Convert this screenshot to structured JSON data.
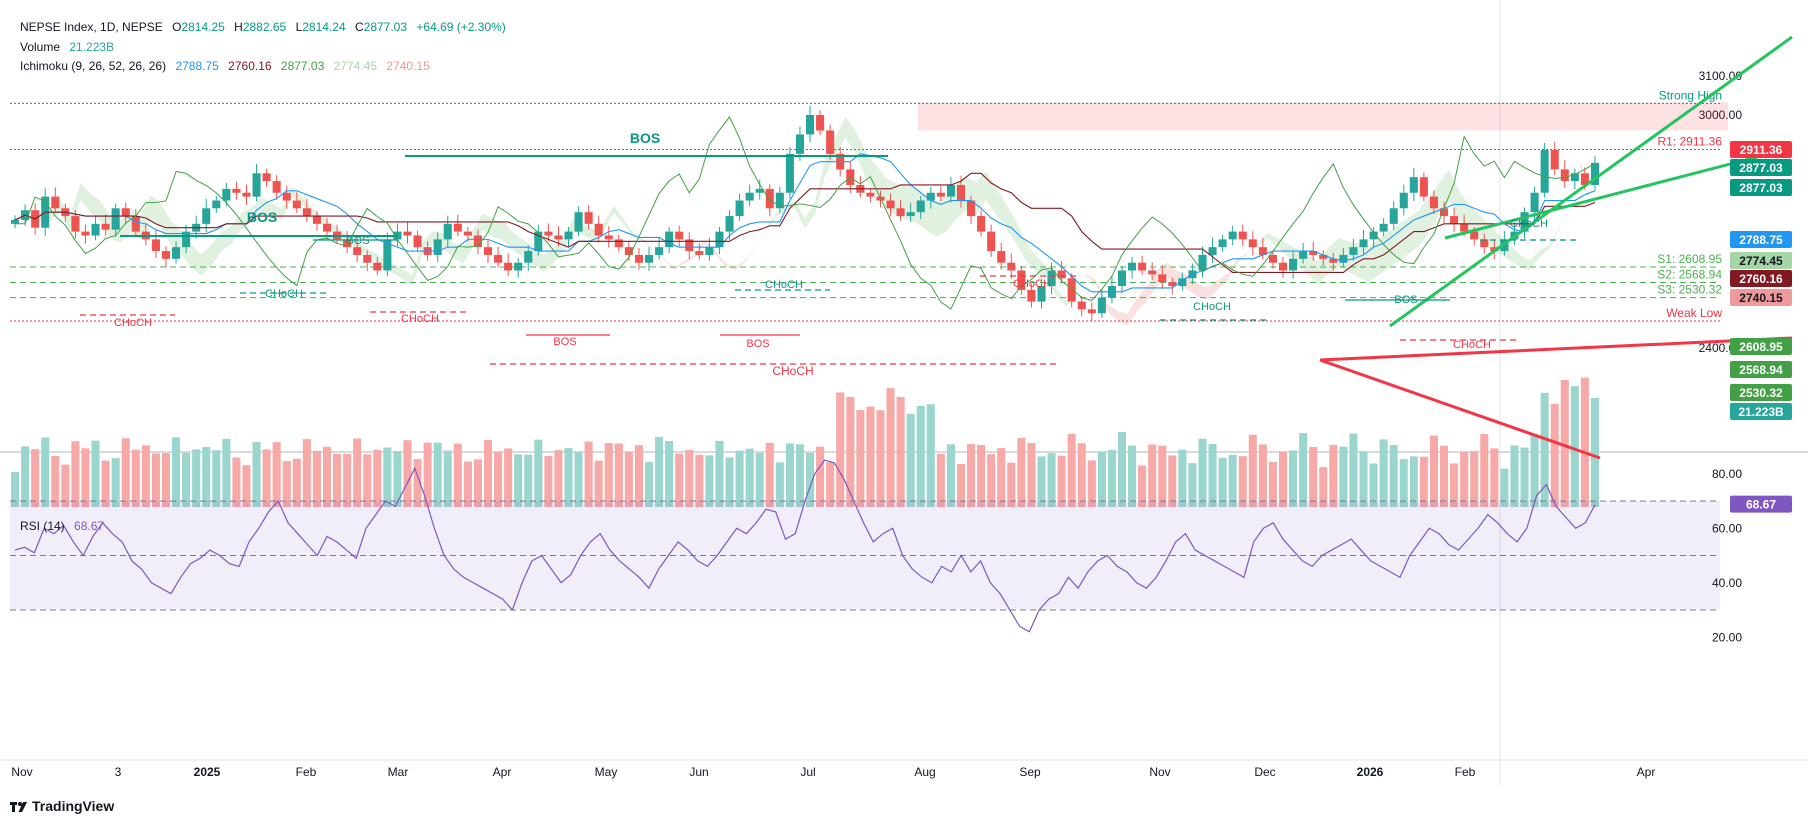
{
  "legend": {
    "symbol": "NEPSE Index, 1D, NEPSE",
    "o_label": "O",
    "o": "2814.25",
    "h_label": "H",
    "h": "2882.65",
    "l_label": "L",
    "l": "2814.24",
    "c_label": "C",
    "c": "2877.03",
    "change": "+64.69 (+2.30%)",
    "volume_label": "Volume",
    "volume": "21.223B",
    "ichimoku_label": "Ichimoku (9, 26, 52, 26, 26)",
    "ichimoku_values": [
      "2788.75",
      "2760.16",
      "2877.03",
      "2774.45",
      "2740.15"
    ],
    "rsi_label": "RSI (14)",
    "rsi": "68.67"
  },
  "colors": {
    "up": "#26a69a",
    "down": "#ef5350",
    "tenkan": "#2196f3",
    "kijun": "#801922",
    "lagging": "#43a047",
    "span_a": "#a5d6a7",
    "span_b": "#ef9a9a",
    "rsi": "#7e57c2",
    "bos": "#089981",
    "choch_bear": "#f23645",
    "trend_green": "#22c55e"
  },
  "brand": "TradingView",
  "chart_data": [
    {
      "type": "candlestick",
      "title": "NEPSE Index, 1D, NEPSE",
      "y_axis_ticks": [
        3100,
        3000,
        2400
      ],
      "x_axis_ticks": [
        "Nov",
        "3",
        "2025",
        "Feb",
        "Mar",
        "Apr",
        "May",
        "Jun",
        "Jul",
        "Aug",
        "Sep",
        "Nov",
        "Dec",
        "2026",
        "Feb",
        "Apr"
      ],
      "ohlc_last": {
        "open": 2814.25,
        "high": 2882.65,
        "low": 2814.24,
        "close": 2877.03,
        "change": 64.69,
        "change_pct": 2.3
      },
      "close_path": [
        2730,
        2755,
        2710,
        2790,
        2760,
        2740,
        2700,
        2690,
        2720,
        2705,
        2760,
        2740,
        2700,
        2680,
        2650,
        2630,
        2660,
        2700,
        2720,
        2760,
        2780,
        2810,
        2800,
        2790,
        2850,
        2830,
        2800,
        2780,
        2760,
        2740,
        2720,
        2700,
        2680,
        2660,
        2640,
        2620,
        2600,
        2680,
        2700,
        2690,
        2660,
        2640,
        2680,
        2720,
        2700,
        2690,
        2660,
        2640,
        2620,
        2600,
        2620,
        2650,
        2700,
        2690,
        2680,
        2700,
        2750,
        2720,
        2690,
        2680,
        2660,
        2640,
        2620,
        2640,
        2660,
        2700,
        2680,
        2650,
        2640,
        2660,
        2700,
        2740,
        2780,
        2800,
        2810,
        2760,
        2800,
        2900,
        2950,
        3000,
        2960,
        2900,
        2860,
        2820,
        2800,
        2790,
        2780,
        2760,
        2740,
        2750,
        2780,
        2800,
        2790,
        2820,
        2780,
        2740,
        2700,
        2650,
        2620,
        2600,
        2550,
        2520,
        2560,
        2600,
        2580,
        2520,
        2500,
        2490,
        2530,
        2560,
        2600,
        2620,
        2600,
        2590,
        2570,
        2560,
        2580,
        2600,
        2640,
        2660,
        2680,
        2700,
        2680,
        2660,
        2640,
        2620,
        2600,
        2630,
        2650,
        2640,
        2630,
        2620,
        2640,
        2660,
        2680,
        2700,
        2720,
        2760,
        2800,
        2840,
        2790,
        2760,
        2740,
        2720,
        2700,
        2680,
        2660,
        2650,
        2680,
        2700,
        2750,
        2800,
        2910,
        2860,
        2830,
        2850,
        2820,
        2877.03
      ],
      "ichimoku_last": {
        "tenkan": 2788.75,
        "kijun": 2760.16,
        "lagging": 2877.03,
        "span_a": 2774.45,
        "span_b": 2740.15
      },
      "levels": [
        {
          "label": "Strong High",
          "value": 3030
        },
        {
          "label": "R1: 2911.36",
          "value": 2911.36
        },
        {
          "label": "S1: 2608.95",
          "value": 2608.95
        },
        {
          "label": "S2: 2568.94",
          "value": 2568.94
        },
        {
          "label": "S3: 2530.32",
          "value": 2530.32
        },
        {
          "label": "Weak Low",
          "value": 2470
        }
      ],
      "annotations": [
        "BOS",
        "BOS",
        "BOS",
        "BOS",
        "BOS",
        "BOS",
        "CHoCH",
        "CHoCH",
        "CHoCH",
        "CHoCH",
        "CHoCH",
        "CHoCH",
        "CHoCH",
        "CHoCH",
        "CHoCH"
      ],
      "price_tags": [
        "2911.36",
        "2877.03",
        "2877.03",
        "2788.75",
        "2774.45",
        "2760.16",
        "2740.15",
        "2608.95",
        "2568.94",
        "2530.32",
        "21.223B"
      ]
    },
    {
      "type": "bar",
      "title": "Volume",
      "last_value": "21.223B"
    },
    {
      "type": "line",
      "title": "RSI (14)",
      "y_axis_ticks": [
        80,
        60,
        40,
        20
      ],
      "bands": {
        "upper": 70,
        "middle": 50,
        "lower": 30
      },
      "last_value": 68.67,
      "values": [
        52,
        53,
        51,
        60,
        58,
        61,
        55,
        50,
        57,
        62,
        58,
        55,
        48,
        45,
        40,
        38,
        36,
        42,
        47,
        49,
        52,
        50,
        47,
        46,
        55,
        60,
        66,
        70,
        62,
        58,
        54,
        50,
        57,
        55,
        52,
        49,
        60,
        65,
        70,
        68,
        75,
        82,
        72,
        60,
        50,
        45,
        42,
        40,
        38,
        36,
        34,
        30,
        40,
        48,
        50,
        45,
        40,
        43,
        50,
        55,
        58,
        52,
        48,
        45,
        42,
        38,
        45,
        50,
        55,
        52,
        48,
        46,
        50,
        55,
        60,
        58,
        62,
        67,
        66,
        56,
        58,
        70,
        80,
        85,
        84,
        78,
        70,
        62,
        55,
        58,
        60,
        50,
        45,
        42,
        40,
        46,
        44,
        50,
        44,
        48,
        40,
        36,
        30,
        24,
        22,
        30,
        34,
        36,
        42,
        38,
        44,
        48,
        50,
        46,
        44,
        40,
        38,
        42,
        48,
        55,
        58,
        52,
        50,
        48,
        46,
        44,
        42,
        55,
        60,
        62,
        56,
        52,
        48,
        46,
        50,
        52,
        54,
        56,
        52,
        48,
        46,
        44,
        42,
        50,
        55,
        60,
        58,
        54,
        52,
        56,
        60,
        65,
        62,
        58,
        55,
        60,
        72,
        76,
        68,
        64,
        60,
        62,
        68.67
      ]
    }
  ]
}
